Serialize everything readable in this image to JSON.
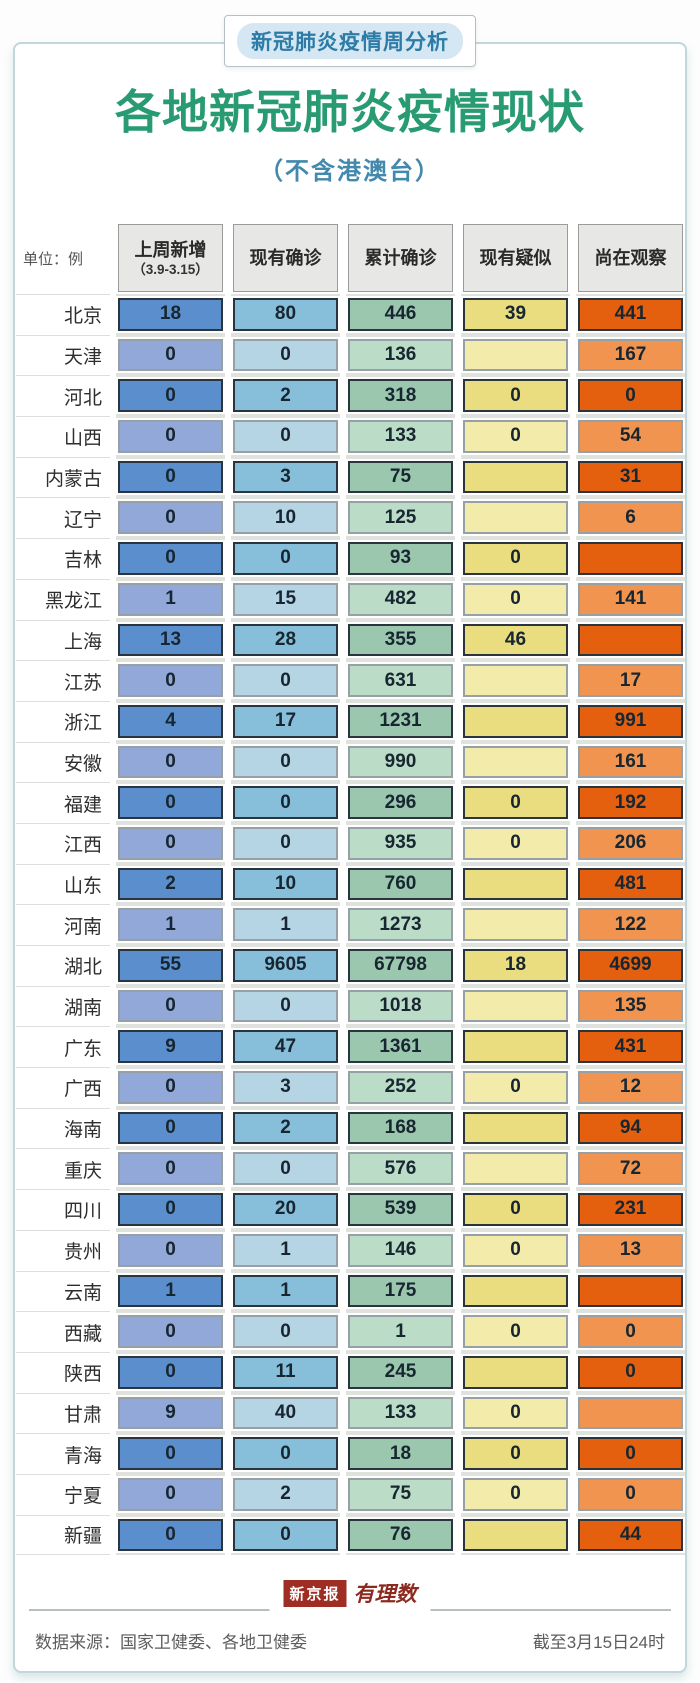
{
  "header": {
    "badge": "新冠肺炎疫情周分析",
    "title": "各地新冠肺炎疫情现状",
    "subtitle": "（不含港澳台）"
  },
  "table": {
    "unit_label": "单位：例",
    "columns": [
      {
        "label": "上周新增",
        "sublabel": "（3.9-3.15）"
      },
      {
        "label": "现有确诊",
        "sublabel": ""
      },
      {
        "label": "累计确诊",
        "sublabel": ""
      },
      {
        "label": "现有疑似",
        "sublabel": ""
      },
      {
        "label": "尚在观察",
        "sublabel": ""
      }
    ],
    "rows": [
      {
        "region": "北京",
        "values": [
          "18",
          "80",
          "446",
          "39",
          "441"
        ]
      },
      {
        "region": "天津",
        "values": [
          "0",
          "0",
          "136",
          "",
          "167"
        ]
      },
      {
        "region": "河北",
        "values": [
          "0",
          "2",
          "318",
          "0",
          "0"
        ]
      },
      {
        "region": "山西",
        "values": [
          "0",
          "0",
          "133",
          "0",
          "54"
        ]
      },
      {
        "region": "内蒙古",
        "values": [
          "0",
          "3",
          "75",
          "",
          "31"
        ]
      },
      {
        "region": "辽宁",
        "values": [
          "0",
          "10",
          "125",
          "",
          "6"
        ]
      },
      {
        "region": "吉林",
        "values": [
          "0",
          "0",
          "93",
          "0",
          ""
        ]
      },
      {
        "region": "黑龙江",
        "values": [
          "1",
          "15",
          "482",
          "0",
          "141"
        ]
      },
      {
        "region": "上海",
        "values": [
          "13",
          "28",
          "355",
          "46",
          ""
        ]
      },
      {
        "region": "江苏",
        "values": [
          "0",
          "0",
          "631",
          "",
          "17"
        ]
      },
      {
        "region": "浙江",
        "values": [
          "4",
          "17",
          "1231",
          "",
          "991"
        ]
      },
      {
        "region": "安徽",
        "values": [
          "0",
          "0",
          "990",
          "",
          "161"
        ]
      },
      {
        "region": "福建",
        "values": [
          "0",
          "0",
          "296",
          "0",
          "192"
        ]
      },
      {
        "region": "江西",
        "values": [
          "0",
          "0",
          "935",
          "0",
          "206"
        ]
      },
      {
        "region": "山东",
        "values": [
          "2",
          "10",
          "760",
          "",
          "481"
        ]
      },
      {
        "region": "河南",
        "values": [
          "1",
          "1",
          "1273",
          "",
          "122"
        ]
      },
      {
        "region": "湖北",
        "values": [
          "55",
          "9605",
          "67798",
          "18",
          "4699"
        ]
      },
      {
        "region": "湖南",
        "values": [
          "0",
          "0",
          "1018",
          "",
          "135"
        ]
      },
      {
        "region": "广东",
        "values": [
          "9",
          "47",
          "1361",
          "",
          "431"
        ]
      },
      {
        "region": "广西",
        "values": [
          "0",
          "3",
          "252",
          "0",
          "12"
        ]
      },
      {
        "region": "海南",
        "values": [
          "0",
          "2",
          "168",
          "",
          "94"
        ]
      },
      {
        "region": "重庆",
        "values": [
          "0",
          "0",
          "576",
          "",
          "72"
        ]
      },
      {
        "region": "四川",
        "values": [
          "0",
          "20",
          "539",
          "0",
          "231"
        ]
      },
      {
        "region": "贵州",
        "values": [
          "0",
          "1",
          "146",
          "0",
          "13"
        ]
      },
      {
        "region": "云南",
        "values": [
          "1",
          "1",
          "175",
          "",
          ""
        ]
      },
      {
        "region": "西藏",
        "values": [
          "0",
          "0",
          "1",
          "0",
          "0"
        ]
      },
      {
        "region": "陕西",
        "values": [
          "0",
          "11",
          "245",
          "",
          "0"
        ]
      },
      {
        "region": "甘肃",
        "values": [
          "9",
          "40",
          "133",
          "0",
          ""
        ]
      },
      {
        "region": "青海",
        "values": [
          "0",
          "0",
          "18",
          "0",
          "0"
        ]
      },
      {
        "region": "宁夏",
        "values": [
          "0",
          "2",
          "75",
          "0",
          "0"
        ]
      },
      {
        "region": "新疆",
        "values": [
          "0",
          "0",
          "76",
          "",
          "44"
        ]
      }
    ]
  },
  "footer": {
    "logo_primary": "新京报",
    "logo_secondary": "有理数",
    "source": "数据来源：国家卫健委、各地卫健委",
    "as_of": "截至3月15日24时"
  },
  "colors": {
    "title_green": "#289b73",
    "subtitle_blue": "#4389ad",
    "badge_text": "#2d7ba7",
    "badge_pill_bg": "#d5e7f2",
    "card_border": "#c1d7db",
    "logo_red": "#9e2d23",
    "cell_dark": [
      "#5b8ecc",
      "#87bfda",
      "#9ac7ae",
      "#e9dd80",
      "#e4600f"
    ],
    "cell_light": [
      "#92a8d9",
      "#b5d5e4",
      "#bbddc7",
      "#f3ebaa",
      "#f0944f"
    ],
    "cell_border_dark": "#2b3540",
    "cell_border_light": "#97a0a6"
  },
  "chart_data": {
    "type": "table",
    "title": "各地新冠肺炎疫情现状（不含港澳台）",
    "unit": "例",
    "columns": [
      "上周新增（3.9-3.15）",
      "现有确诊",
      "累计确诊",
      "现有疑似",
      "尚在观察"
    ],
    "regions": [
      "北京",
      "天津",
      "河北",
      "山西",
      "内蒙古",
      "辽宁",
      "吉林",
      "黑龙江",
      "上海",
      "江苏",
      "浙江",
      "安徽",
      "福建",
      "江西",
      "山东",
      "河南",
      "湖北",
      "湖南",
      "广东",
      "广西",
      "海南",
      "重庆",
      "四川",
      "贵州",
      "云南",
      "西藏",
      "陕西",
      "甘肃",
      "青海",
      "宁夏",
      "新疆"
    ],
    "series": [
      {
        "name": "上周新增（3.9-3.15）",
        "values": [
          18,
          0,
          0,
          0,
          0,
          0,
          0,
          1,
          13,
          0,
          4,
          0,
          0,
          0,
          2,
          1,
          55,
          0,
          9,
          0,
          0,
          0,
          0,
          0,
          1,
          0,
          0,
          9,
          0,
          0,
          0
        ]
      },
      {
        "name": "现有确诊",
        "values": [
          80,
          0,
          2,
          0,
          3,
          10,
          0,
          15,
          28,
          0,
          17,
          0,
          0,
          0,
          10,
          1,
          9605,
          0,
          47,
          3,
          2,
          0,
          20,
          1,
          1,
          0,
          11,
          40,
          0,
          2,
          0
        ]
      },
      {
        "name": "累计确诊",
        "values": [
          446,
          136,
          318,
          133,
          75,
          125,
          93,
          482,
          355,
          631,
          1231,
          990,
          296,
          935,
          760,
          1273,
          67798,
          1018,
          1361,
          252,
          168,
          576,
          539,
          146,
          175,
          1,
          245,
          133,
          18,
          75,
          76
        ]
      },
      {
        "name": "现有疑似",
        "values": [
          39,
          null,
          0,
          0,
          null,
          null,
          0,
          0,
          46,
          null,
          null,
          null,
          0,
          0,
          null,
          null,
          18,
          null,
          null,
          0,
          null,
          null,
          0,
          0,
          null,
          0,
          null,
          0,
          0,
          0,
          null
        ]
      },
      {
        "name": "尚在观察",
        "values": [
          441,
          167,
          0,
          54,
          31,
          6,
          null,
          141,
          null,
          17,
          991,
          161,
          192,
          206,
          481,
          122,
          4699,
          135,
          431,
          12,
          94,
          72,
          231,
          13,
          null,
          0,
          0,
          null,
          0,
          0,
          44
        ]
      }
    ],
    "note": "null = 单元格空白；截至3月15日24时；数据来源：国家卫健委、各地卫健委"
  }
}
